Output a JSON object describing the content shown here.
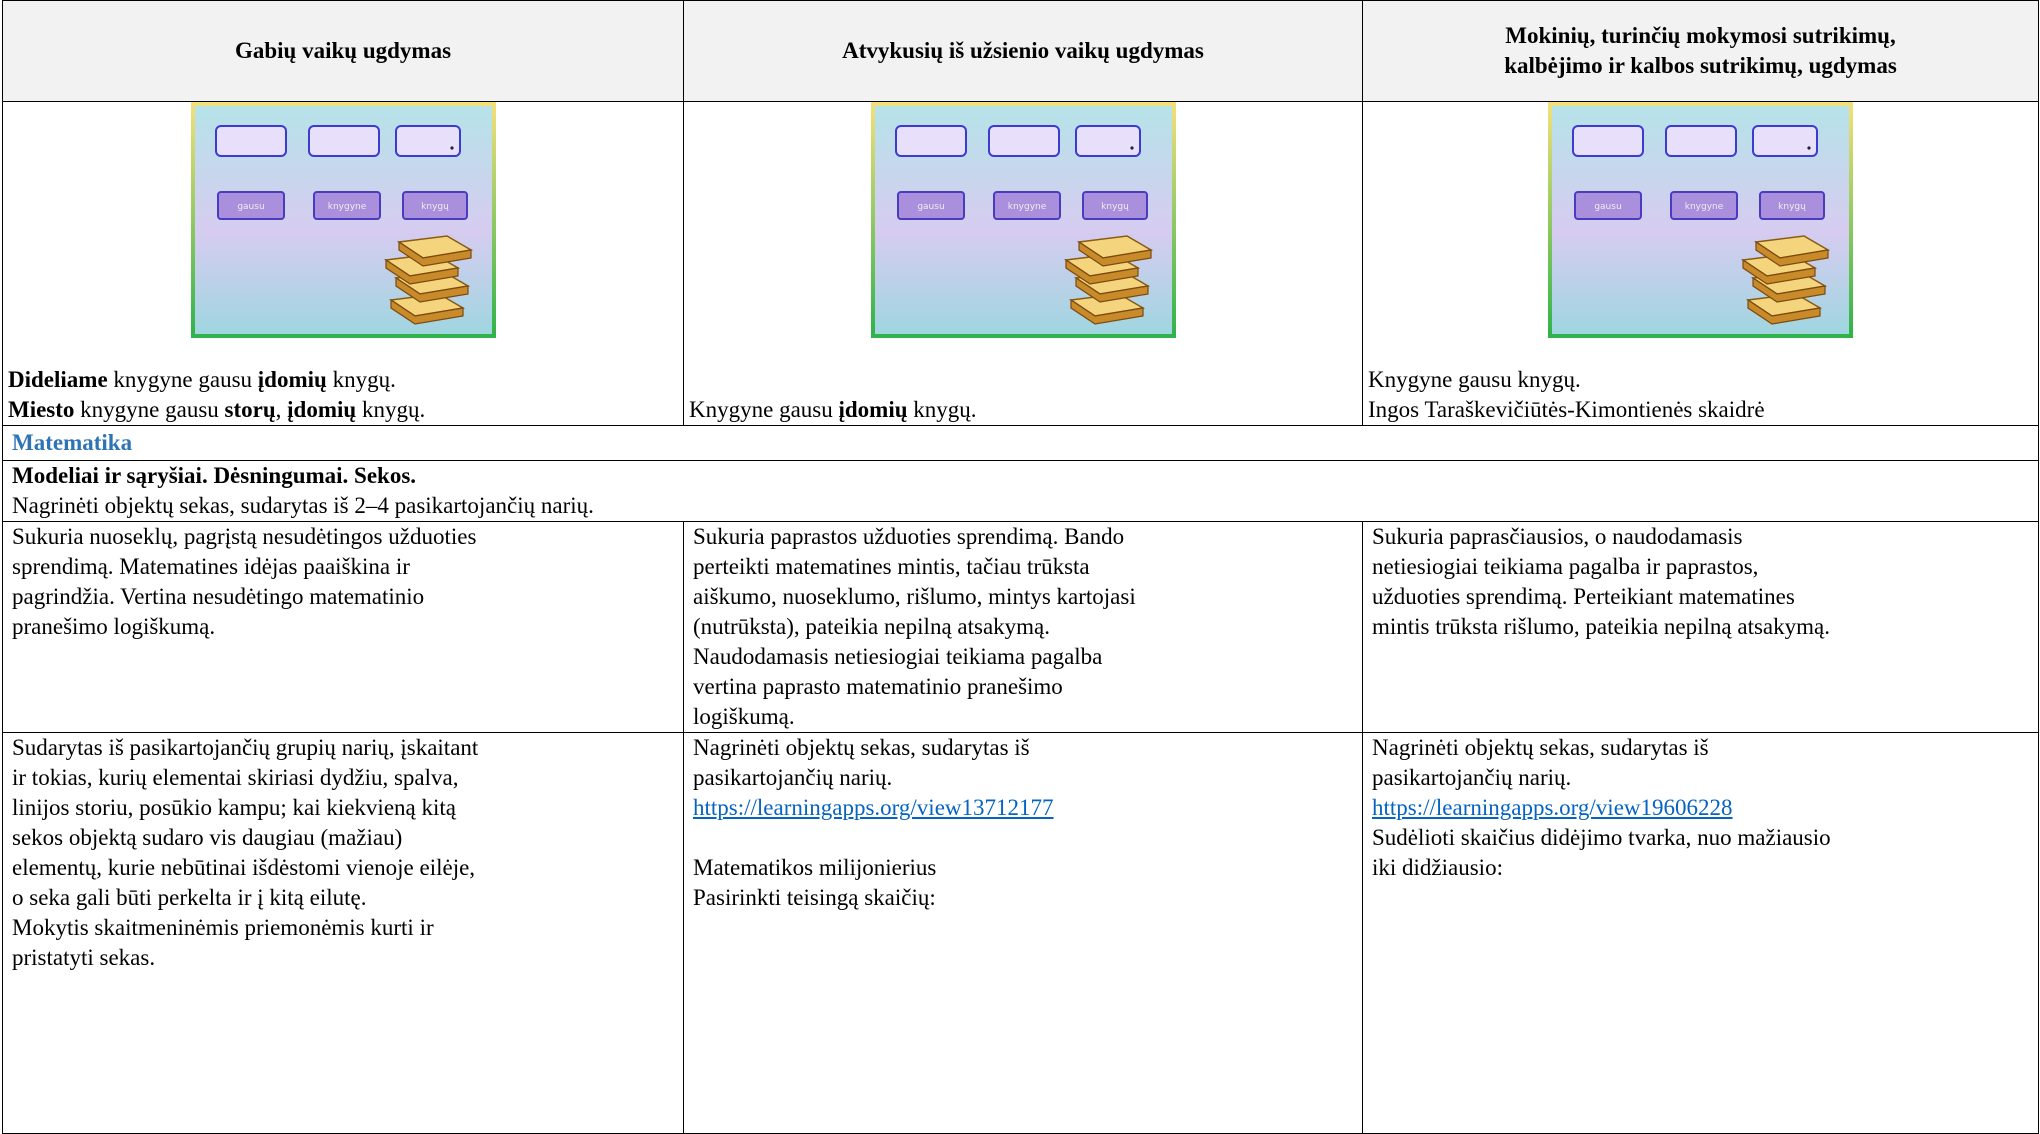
{
  "table": {
    "header": [
      [
        "Gabių vaikų ugdymas"
      ],
      [
        "Atvykusių iš užsienio vaikų ugdymas"
      ],
      [
        "Mokinių, turinčių mokymosi sutrikimų,",
        "kalbėjimo ir kalbos sutrikimų, ugdymas"
      ]
    ],
    "slide_words": [
      "gausu",
      "knygyne",
      "knygų"
    ],
    "captions": [
      [
        [
          {
            "text": "Dideliame",
            "bold": true
          },
          {
            "text": " knygyne gausu "
          },
          {
            "text": "įdomių",
            "bold": true
          },
          {
            "text": " knygų."
          }
        ],
        [
          {
            "text": "Miesto",
            "bold": true
          },
          {
            "text": " knygyne gausu "
          },
          {
            "text": "storų",
            "bold": true
          },
          {
            "text": ", "
          },
          {
            "text": "įdomių",
            "bold": true
          },
          {
            "text": " knygų."
          }
        ]
      ],
      [
        [
          {
            "text": "Knygyne gausu "
          },
          {
            "text": "įdomių",
            "bold": true
          },
          {
            "text": " knygų."
          }
        ]
      ],
      [
        [
          {
            "text": "Knygyne gausu knygų."
          }
        ],
        [
          {
            "text": "Ingos Taraškevičiūtės-Kimontienės skaidrė"
          }
        ]
      ]
    ],
    "section": "Matematika",
    "topic": {
      "title": "Modeliai ir sąryšiai. Dėsningumai. Sekos.",
      "text": "Nagrinėti objektų sekas, sudarytas iš 2–4 pasikartojančių narių."
    },
    "rows": [
      [
        [
          [
            "Sukuria nuoseklų, pagrįstą nesudėtingos užduoties",
            "sprendimą. Matematines idėjas paaiškina ir",
            "pagrindžia. Vertina nesudėtingo matematinio",
            "pranešimo logiškumą."
          ]
        ],
        [
          [
            "Sukuria paprastos užduoties sprendimą. Bando",
            "perteikti matematines mintis, tačiau trūksta",
            "aiškumo, nuoseklumo, rišlumo, mintys kartojasi",
            "(nutrūksta), pateikia nepilną atsakymą.",
            "Naudodamasis netiesiogiai teikiama pagalba",
            "vertina paprasto matematinio pranešimo",
            "logiškumą."
          ]
        ],
        [
          [
            "Sukuria paprasčiausios, o naudodamasis",
            "netiesiogiai teikiama pagalba ir paprastos,",
            "užduoties sprendimą. Perteikiant matematines",
            "mintis trūksta rišlumo, pateikia nepilną atsakymą."
          ]
        ]
      ],
      [
        [
          [
            "Sudarytas iš pasikartojančių grupių narių, įskaitant",
            "ir tokias, kurių elementai skiriasi dydžiu, spalva,",
            "linijos storiu, posūkio kampu; kai kiekvieną kitą",
            "sekos objektą sudaro vis daugiau (mažiau)",
            "elementų, kurie nebūtinai išdėstomi vienoje eilėje,",
            "o seka gali būti perkelta ir į kitą eilutę.",
            "Mokytis skaitmeninėmis priemonėmis kurti ir",
            "pristatyti sekas."
          ]
        ],
        [
          [
            "Nagrinėti objektų sekas, sudarytas iš",
            "pasikartojančių narių.",
            {
              "link": "https://learningapps.org/view13712177"
            }
          ],
          [
            "Matematikos milijonierius",
            "Pasirinkti teisingą skaičių:"
          ]
        ],
        [
          [
            "Nagrinėti objektų sekas, sudarytas iš",
            "pasikartojančių narių.",
            {
              "link": "https://learningapps.org/view19606228"
            },
            "Sudėlioti skaičius didėjimo tvarka, nuo mažiausio",
            "iki didžiausio:"
          ]
        ]
      ]
    ]
  }
}
